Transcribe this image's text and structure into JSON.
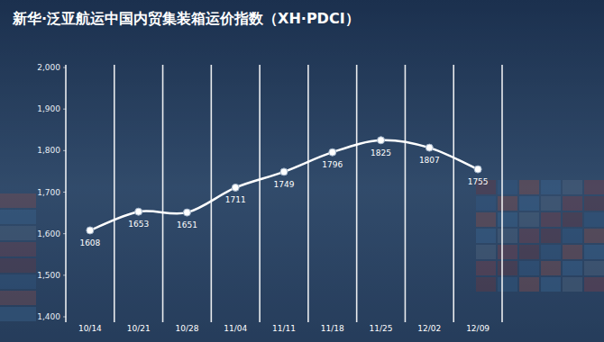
{
  "chart_data": {
    "type": "line",
    "title": "新华·泛亚航运中国内贸集装箱运价指数（XH·PDCI）",
    "categories": [
      "10/14",
      "10/21",
      "10/28",
      "11/04",
      "11/11",
      "11/18",
      "11/25",
      "12/02",
      "12/09"
    ],
    "values": [
      1608,
      1653,
      1651,
      1711,
      1749,
      1796,
      1825,
      1807,
      1755
    ],
    "color": "#ffffff",
    "marker": "circle",
    "data_labels": true,
    "grid": "x",
    "ylim": [
      1400,
      2000
    ],
    "yticks": [
      {
        "value": 1400,
        "label": "1,400"
      },
      {
        "value": 1500,
        "label": "1,500"
      },
      {
        "value": 1600,
        "label": "1,600"
      },
      {
        "value": 1700,
        "label": "1,700"
      },
      {
        "value": 1800,
        "label": "1,800"
      },
      {
        "value": 1900,
        "label": "1,900"
      },
      {
        "value": 2000,
        "label": "2,000"
      }
    ]
  }
}
